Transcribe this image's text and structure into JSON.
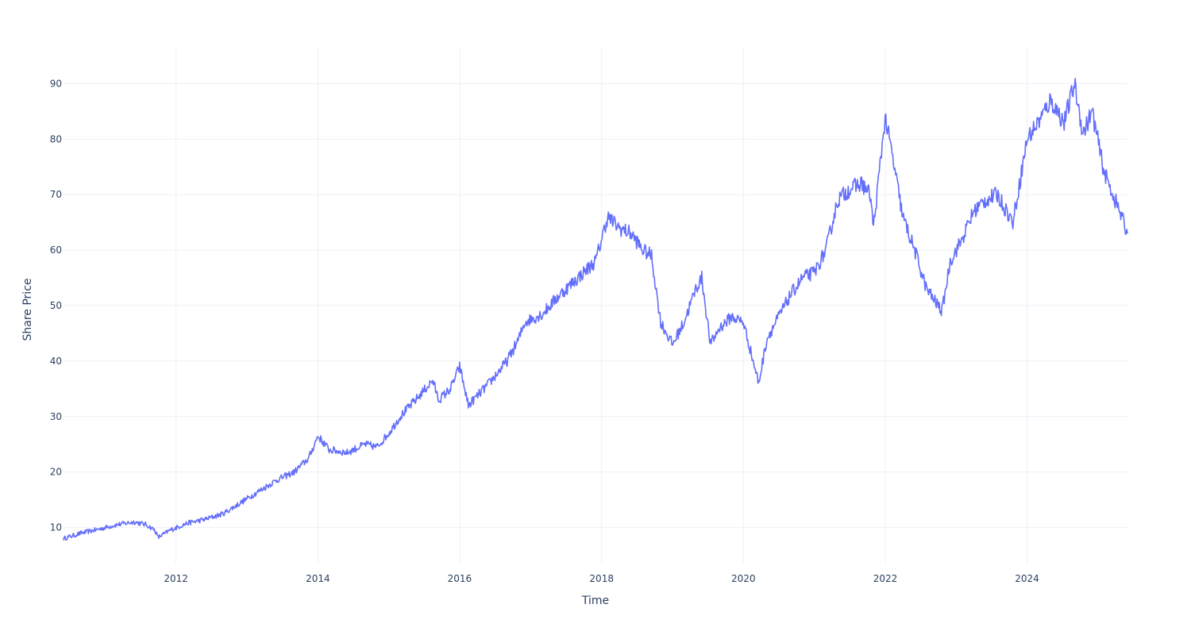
{
  "chart_data": {
    "type": "line",
    "xlabel": "Time",
    "ylabel": "Share Price",
    "x_ticks": [
      "2012",
      "2014",
      "2016",
      "2018",
      "2020",
      "2022",
      "2024"
    ],
    "y_ticks": [
      10,
      20,
      30,
      40,
      50,
      60,
      70,
      80,
      90
    ],
    "xlim": [
      "2010-06-01",
      "2025-06-01"
    ],
    "ylim": [
      3.5,
      96.5
    ],
    "grid": true,
    "legend": "none",
    "line_color": "#636efa",
    "series": [
      {
        "x": [
          "2010-06-01",
          "2010-09-01",
          "2010-12-01",
          "2011-03-01",
          "2011-06-01",
          "2011-08-01",
          "2011-09-15",
          "2011-10-01",
          "2011-12-01",
          "2012-03-01",
          "2012-06-01",
          "2012-09-01",
          "2012-12-01",
          "2013-03-01",
          "2013-06-01",
          "2013-09-01",
          "2013-11-15",
          "2014-01-01",
          "2014-03-01",
          "2014-06-01",
          "2014-09-01",
          "2014-11-01",
          "2015-01-01",
          "2015-03-01",
          "2015-06-01",
          "2015-08-15",
          "2015-09-15",
          "2015-11-15",
          "2016-01-01",
          "2016-02-15",
          "2016-06-01",
          "2016-09-01",
          "2016-11-01",
          "2016-12-01",
          "2017-03-01",
          "2017-06-01",
          "2017-09-01",
          "2017-12-01",
          "2018-02-01",
          "2018-04-01",
          "2018-06-01",
          "2018-08-01",
          "2018-09-15",
          "2018-11-01",
          "2019-01-01",
          "2019-03-01",
          "2019-05-01",
          "2019-06-01",
          "2019-07-15",
          "2019-09-01",
          "2019-11-01",
          "2020-01-01",
          "2020-03-20",
          "2020-05-01",
          "2020-07-01",
          "2020-09-01",
          "2020-11-01",
          "2021-01-01",
          "2021-03-01",
          "2021-05-01",
          "2021-07-01",
          "2021-09-01",
          "2021-10-15",
          "2021-11-01",
          "2021-12-31",
          "2022-02-01",
          "2022-04-01",
          "2022-06-01",
          "2022-08-01",
          "2022-10-20",
          "2022-12-01",
          "2023-02-01",
          "2023-04-01",
          "2023-06-01",
          "2023-08-01",
          "2023-10-20",
          "2024-01-01",
          "2024-03-15",
          "2024-05-01",
          "2024-07-10",
          "2024-09-01",
          "2024-10-15",
          "2024-12-01",
          "2025-02-01",
          "2025-04-10",
          "2025-05-01",
          "2025-06-01"
        ],
        "y": [
          8,
          9,
          9.7,
          10.5,
          11,
          10.5,
          9.5,
          8.2,
          9.5,
          10.8,
          11.5,
          12.5,
          14.5,
          16.5,
          18.5,
          20,
          22.5,
          26.5,
          24,
          23.5,
          25,
          24.5,
          27,
          30,
          33.5,
          36.5,
          33,
          35,
          39,
          32,
          36,
          40,
          44,
          47,
          48.5,
          52,
          55,
          58,
          66,
          64,
          63,
          60,
          59,
          47,
          43,
          47,
          53,
          55,
          43,
          46,
          48,
          47,
          36,
          44,
          48,
          52,
          55,
          56,
          60,
          69,
          71,
          72,
          70,
          64,
          84,
          78,
          66,
          60,
          53,
          49,
          58,
          62,
          67,
          69,
          70,
          65,
          80,
          84,
          87,
          83,
          90,
          81,
          85,
          74,
          68,
          66,
          63
        ]
      }
    ]
  }
}
